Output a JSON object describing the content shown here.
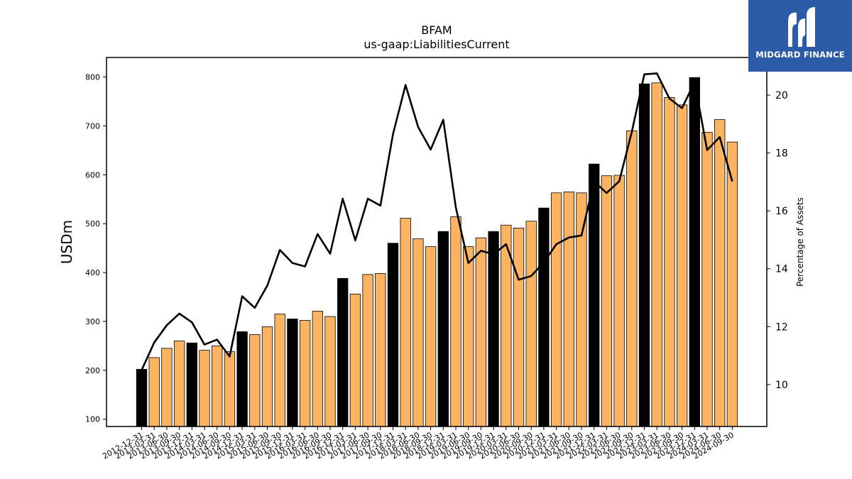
{
  "chart_data": {
    "type": "bar",
    "title": "BFAM",
    "subtitle": "us-gaap:LiabilitiesCurrent",
    "ylabel": "USDm",
    "y2label": "Percentage of Assets",
    "ylim": [
      85,
      840
    ],
    "y2lim": [
      8.55,
      21.3
    ],
    "yticks": [
      100,
      200,
      300,
      400,
      500,
      600,
      700,
      800
    ],
    "y2ticks": [
      10,
      12,
      14,
      16,
      18,
      20
    ],
    "categories": [
      "2012-12-31",
      "2013-03-31",
      "2013-06-30",
      "2013-09-30",
      "2013-12-31",
      "2014-03-31",
      "2014-06-30",
      "2014-09-30",
      "2014-12-31",
      "2015-03-31",
      "2015-06-30",
      "2015-09-30",
      "2015-12-31",
      "2016-03-31",
      "2016-06-30",
      "2016-09-30",
      "2016-12-31",
      "2017-03-31",
      "2017-06-30",
      "2017-09-30",
      "2017-12-31",
      "2018-03-31",
      "2018-06-30",
      "2018-09-30",
      "2018-12-31",
      "2019-03-31",
      "2019-06-30",
      "2019-09-30",
      "2019-12-31",
      "2020-03-31",
      "2020-06-30",
      "2020-09-30",
      "2020-12-31",
      "2021-03-31",
      "2021-06-30",
      "2021-09-30",
      "2021-12-31",
      "2022-03-31",
      "2022-06-30",
      "2022-09-30",
      "2022-12-31",
      "2023-03-31",
      "2023-06-30",
      "2023-09-30",
      "2023-12-31",
      "2024-03-31",
      "2024-06-30",
      "2024-09-30"
    ],
    "series": [
      {
        "type": "bar",
        "values": [
          202,
          226,
          245,
          260,
          256,
          241,
          250,
          238,
          279,
          273,
          289,
          315,
          305,
          302,
          321,
          310,
          388,
          356,
          396,
          398,
          460,
          511,
          469,
          453,
          484,
          514,
          453,
          471,
          484,
          497,
          491,
          505,
          532,
          563,
          565,
          563,
          622,
          598,
          599,
          690,
          786,
          788,
          758,
          743,
          799,
          687,
          713,
          667
        ]
      },
      {
        "type": "line",
        "axis": "right",
        "values": [
          10.5,
          11.45,
          12.05,
          12.45,
          12.15,
          11.38,
          11.55,
          10.97,
          13.05,
          12.65,
          13.42,
          14.65,
          14.2,
          14.08,
          15.2,
          14.52,
          16.42,
          14.98,
          16.42,
          16.18,
          18.65,
          20.35,
          18.9,
          18.12,
          19.15,
          16.12,
          14.2,
          14.62,
          14.5,
          14.85,
          13.62,
          13.75,
          14.22,
          14.85,
          15.08,
          15.15,
          17.02,
          16.62,
          17.02,
          18.72,
          20.72,
          20.75,
          19.88,
          19.55,
          20.45,
          18.1,
          18.55,
          17.02
        ]
      }
    ],
    "bar_colors": {
      "regular": "#fdb462",
      "q4": "#000000",
      "edge": "#000000"
    },
    "line_color": "#000000"
  },
  "logo": {
    "text": "MIDGARD FINANCE",
    "background": "#2d5aa7"
  }
}
